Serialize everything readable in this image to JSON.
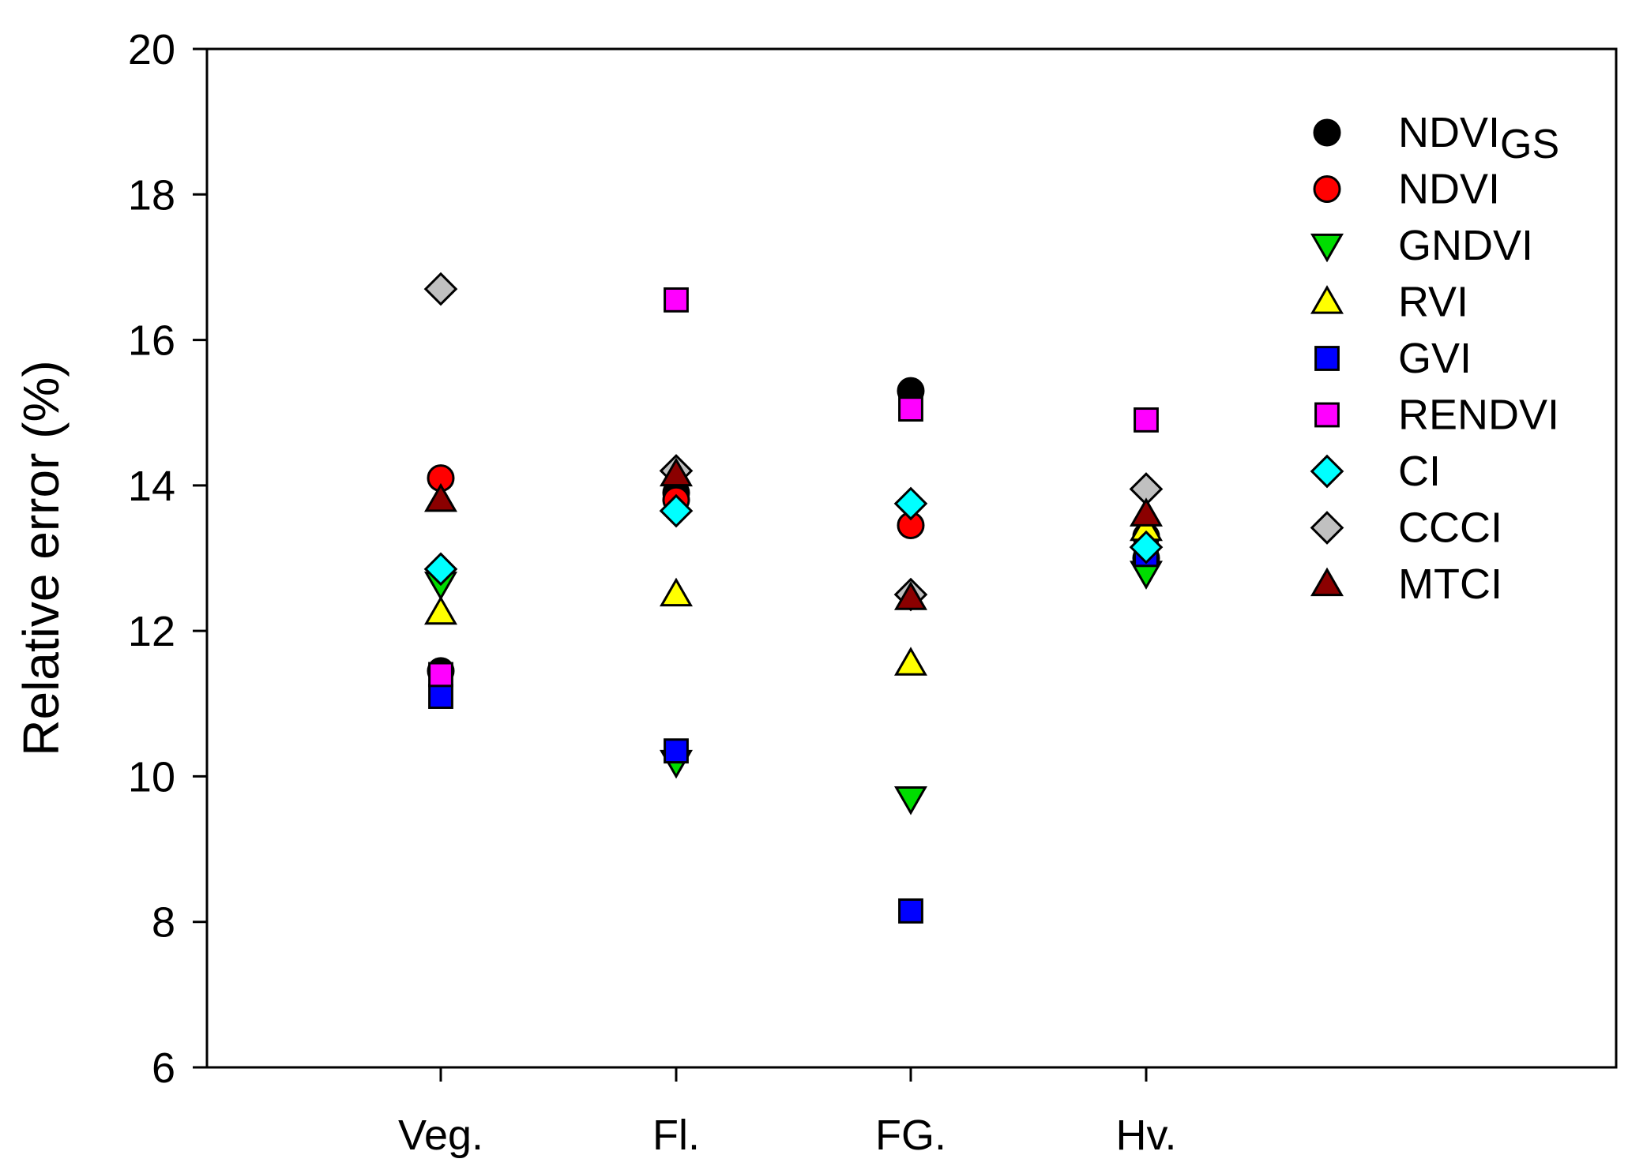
{
  "chart_data": {
    "type": "scatter",
    "title": "",
    "xlabel": "",
    "ylabel": "Relative error (%)",
    "categories": [
      "Veg.",
      "Fl.",
      "FG.",
      "Hv."
    ],
    "ylim": [
      6,
      20
    ],
    "yticks": [
      6,
      8,
      10,
      12,
      14,
      16,
      18,
      20
    ],
    "grid": false,
    "legend_position": "top-right",
    "series": [
      {
        "name": "NDVI",
        "subscript": "GS",
        "marker": "circle",
        "color": "#000000",
        "values": [
          11.45,
          13.9,
          15.3,
          13.0
        ]
      },
      {
        "name": "NDVI",
        "subscript": "",
        "marker": "circle",
        "color": "#ff0000",
        "values": [
          14.1,
          13.8,
          13.45,
          13.3
        ]
      },
      {
        "name": "GNDVI",
        "subscript": "",
        "marker": "triangle-down",
        "color": "#00dd00",
        "values": [
          12.65,
          10.2,
          9.7,
          12.8
        ]
      },
      {
        "name": "RVI",
        "subscript": "",
        "marker": "triangle-up",
        "color": "#ffff00",
        "values": [
          12.25,
          12.5,
          11.55,
          13.4
        ]
      },
      {
        "name": "GVI",
        "subscript": "",
        "marker": "square",
        "color": "#0000ff",
        "values": [
          11.1,
          10.35,
          8.15,
          13.05
        ]
      },
      {
        "name": "RENDVI",
        "subscript": "",
        "marker": "square",
        "color": "#ff00ff",
        "values": [
          11.4,
          16.55,
          15.05,
          14.9
        ]
      },
      {
        "name": "CI",
        "subscript": "",
        "marker": "diamond",
        "color": "#00ffff",
        "values": [
          12.85,
          13.65,
          13.75,
          13.15
        ]
      },
      {
        "name": "CCCI",
        "subscript": "",
        "marker": "diamond",
        "color": "#c0c0c0",
        "values": [
          16.7,
          14.2,
          12.5,
          13.95
        ]
      },
      {
        "name": "MTCI",
        "subscript": "",
        "marker": "triangle-up",
        "color": "#8b0000",
        "values": [
          13.8,
          14.15,
          12.45,
          13.6
        ]
      }
    ]
  }
}
